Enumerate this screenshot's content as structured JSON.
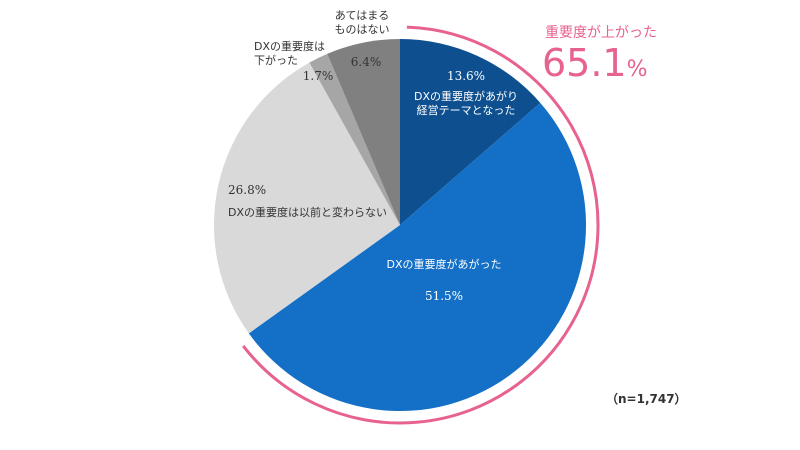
{
  "chart_data": {
    "type": "pie",
    "slices": [
      {
        "label": "DXの重要度があがり\n経営テーマとなった",
        "value": 13.6,
        "value_label": "13.6%",
        "color": "#0e4f8f"
      },
      {
        "label": "DXの重要度があがった",
        "value": 51.5,
        "value_label": "51.5%",
        "color": "#1470c7"
      },
      {
        "label": "DXの重要度は以前と変わらない",
        "value": 26.8,
        "value_label": "26.8%",
        "color": "#d9d9d9"
      },
      {
        "label": "DXの重要度は\n下がった",
        "value": 1.7,
        "value_label": "1.7%",
        "color": "#a6a6a6"
      },
      {
        "label": "あてはまる\nものはない",
        "value": 6.4,
        "value_label": "6.4%",
        "color": "#808080"
      }
    ],
    "start_angle": "12 o'clock",
    "direction": "clockwise",
    "highlight": {
      "caption": "重要度が上がった",
      "number": "65.1",
      "unit": "%",
      "color": "#e8628f"
    },
    "note": "（n=1,747）"
  }
}
